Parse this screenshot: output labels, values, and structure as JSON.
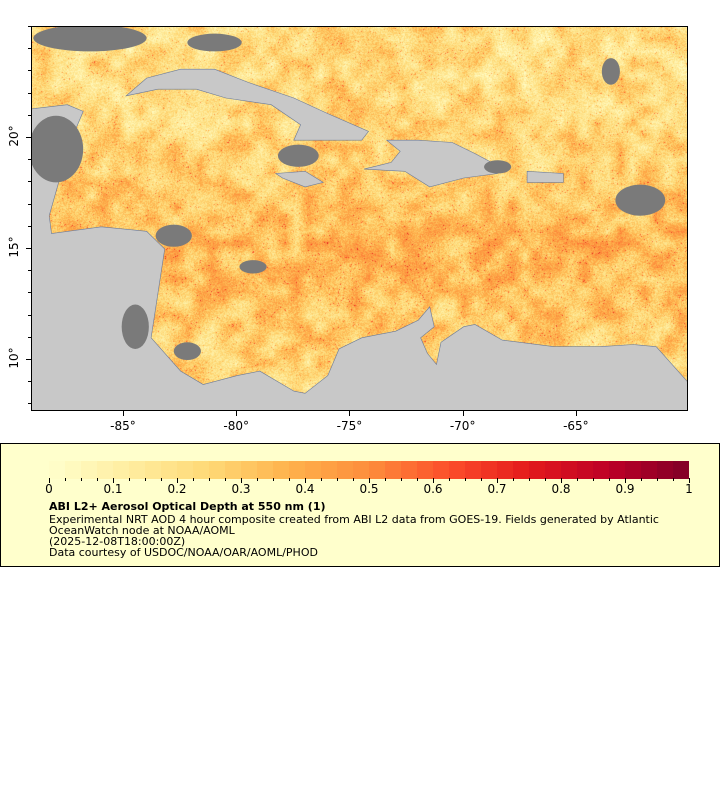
{
  "map": {
    "lon_range": [
      -89.06,
      -60.05
    ],
    "lat_range": [
      7.66,
      25.0
    ],
    "x_ticks": [
      {
        "value": -85,
        "label": "-85°"
      },
      {
        "value": -80,
        "label": "-80°"
      },
      {
        "value": -75,
        "label": "-75°"
      },
      {
        "value": -70,
        "label": "-70°"
      },
      {
        "value": -65,
        "label": "-65°"
      }
    ],
    "y_ticks": [
      {
        "value": 20,
        "label": "20°"
      },
      {
        "value": 15,
        "label": "15°"
      },
      {
        "value": 10,
        "label": "10°"
      }
    ],
    "land_color": "#c8c8c8",
    "nodata_color": "#7a7a7a",
    "border_color": "#000000",
    "river_color": "#5b8fd0"
  },
  "legend": {
    "colormap": [
      "#ffffcc",
      "#ffeda0",
      "#fed976",
      "#feb24c",
      "#fd8d3c",
      "#fc4e2a",
      "#e31a1c",
      "#bd0026",
      "#800026"
    ],
    "range": [
      0,
      1
    ],
    "tick_labels": [
      "0",
      "0.1",
      "0.2",
      "0.3",
      "0.4",
      "0.5",
      "0.6",
      "0.7",
      "0.8",
      "0.9",
      "1"
    ],
    "title": "ABI L2+ Aerosol Optical Depth at 550 nm (1)",
    "description_line1": "Experimental NRT AOD 4 hour composite created from ABI L2 data from GOES-19. Fields generated by Atlantic",
    "description_line2": "OceanWatch node at NOAA/AOML",
    "time": "(2025-12-08T18:00:00Z)",
    "credit": "Data courtesy of USDOC/NOAA/OAR/AOML/PHOD"
  }
}
